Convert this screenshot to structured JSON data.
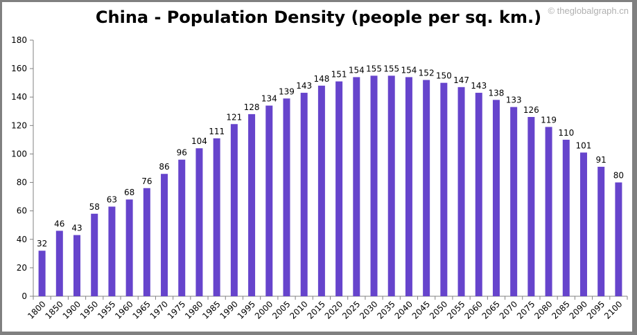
{
  "chart_data": {
    "type": "bar",
    "title": "China - Population Density (people per sq. km.)",
    "watermark": "© theglobalgraph.cn",
    "xlabel": "",
    "ylabel": "",
    "ylim": [
      0,
      180
    ],
    "yticks": [
      0,
      20,
      40,
      60,
      80,
      100,
      120,
      140,
      160,
      180
    ],
    "grid": false,
    "bar_color": "#6644CC",
    "categories": [
      "1800",
      "1850",
      "1900",
      "1950",
      "1955",
      "1960",
      "1965",
      "1970",
      "1975",
      "1980",
      "1985",
      "1990",
      "1995",
      "2000",
      "2005",
      "2010",
      "2015",
      "2020",
      "2025",
      "2030",
      "2035",
      "2040",
      "2045",
      "2050",
      "2055",
      "2060",
      "2065",
      "2070",
      "2075",
      "2080",
      "2085",
      "2090",
      "2095",
      "2100"
    ],
    "values": [
      32,
      46,
      43,
      58,
      63,
      68,
      76,
      86,
      96,
      104,
      111,
      121,
      128,
      134,
      139,
      143,
      148,
      151,
      154,
      155,
      155,
      154,
      152,
      150,
      147,
      143,
      138,
      133,
      126,
      119,
      110,
      101,
      91,
      80
    ]
  }
}
